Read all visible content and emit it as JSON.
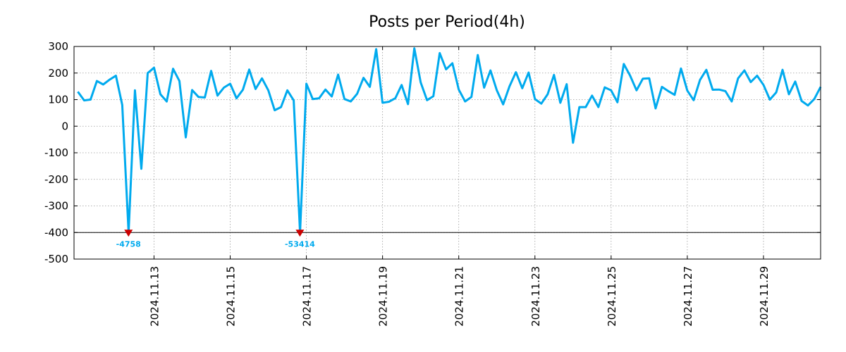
{
  "chart_data": {
    "type": "line",
    "title": "Posts per Period(4h)",
    "xlabel": "",
    "ylabel": "",
    "ylim": [
      -500,
      300
    ],
    "yticks": [
      300,
      200,
      100,
      0,
      -100,
      -200,
      -300,
      -400,
      -500
    ],
    "ytick_labels": [
      "300",
      "200",
      "100",
      "0",
      "-100",
      "-200",
      "-300",
      "-400",
      "-500"
    ],
    "xlim": [
      -0.1,
      19.5
    ],
    "x_ticks": [
      {
        "x": 2,
        "label": "2024.11.13"
      },
      {
        "x": 4,
        "label": "2024.11.15"
      },
      {
        "x": 6,
        "label": "2024.11.17"
      },
      {
        "x": 8,
        "label": "2024.11.19"
      },
      {
        "x": 10,
        "label": "2024.11.21"
      },
      {
        "x": 12,
        "label": "2024.11.23"
      },
      {
        "x": 14,
        "label": "2024.11.25"
      },
      {
        "x": 16,
        "label": "2024.11.27"
      },
      {
        "x": 18,
        "label": "2024.11.29"
      }
    ],
    "x_unit": "days since 2024.11.11",
    "floor_line": -400,
    "series": [
      {
        "name": "posts",
        "color": "#00aaee",
        "values": [
          130,
          97,
          100,
          170,
          157,
          175,
          190,
          80,
          -400,
          135,
          -160,
          200,
          220,
          120,
          93,
          216,
          170,
          -42,
          136,
          110,
          108,
          208,
          115,
          145,
          160,
          105,
          137,
          213,
          140,
          180,
          135,
          60,
          72,
          135,
          97,
          -400,
          160,
          102,
          105,
          138,
          112,
          194,
          102,
          93,
          122,
          182,
          148,
          290,
          88,
          92,
          105,
          155,
          83,
          293,
          165,
          98,
          113,
          275,
          214,
          237,
          138,
          93,
          110,
          268,
          145,
          210,
          135,
          82,
          150,
          203,
          143,
          202,
          102,
          85,
          120,
          193,
          88,
          158,
          -62,
          72,
          72,
          115,
          72,
          146,
          135,
          90,
          234,
          190,
          135,
          179,
          180,
          67,
          148,
          132,
          118,
          217,
          134,
          98,
          174,
          212,
          137,
          138,
          132,
          93,
          180,
          210,
          166,
          190,
          155,
          100,
          127,
          212,
          120,
          168,
          95,
          78,
          102,
          148
        ]
      }
    ],
    "annotations": [
      {
        "x": 1.33,
        "value": -4758,
        "label": "-4758"
      },
      {
        "x": 5.83,
        "value": -53414,
        "label": "-53414"
      }
    ]
  },
  "colors": {
    "line": "#00aaee",
    "marker": "#cc0000",
    "annotation": "#00aaee"
  }
}
